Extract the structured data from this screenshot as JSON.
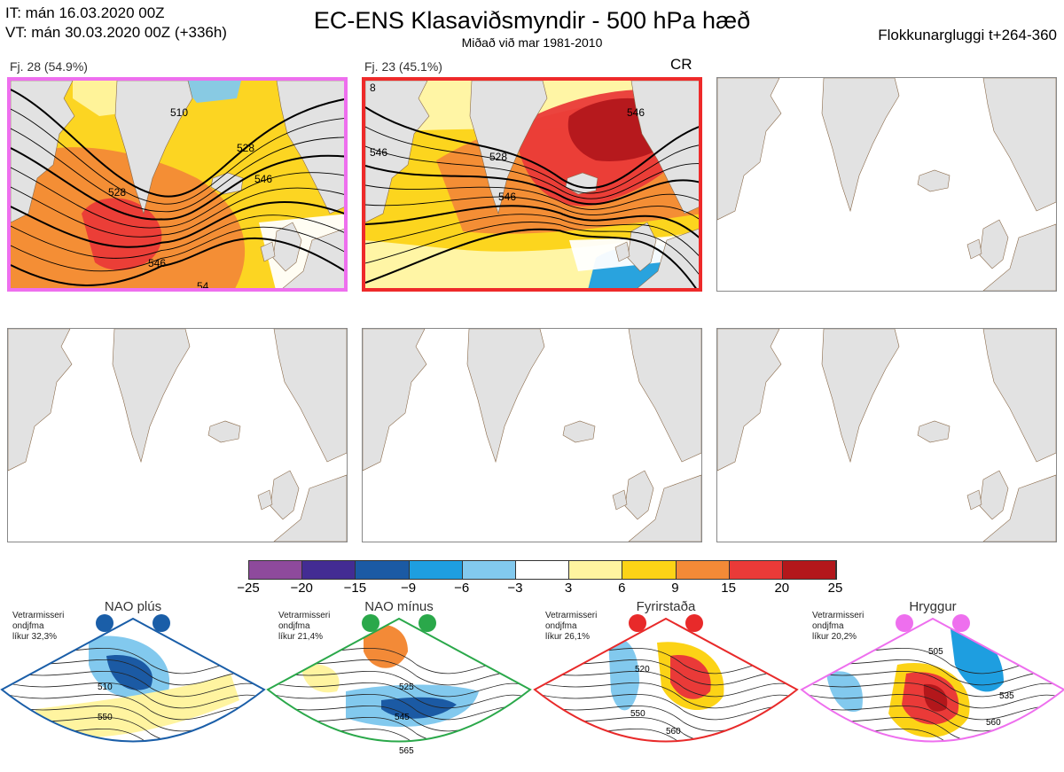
{
  "header": {
    "init_line": "IT: mán 16.03.2020 00Z",
    "valid_line": "VT: mán 30.03.2020 00Z  (+336h)",
    "title": "EC-ENS Klasaviðsmyndir - 500 hPa hæð",
    "subtitle": "Miðað við mar 1981-2010",
    "window": "Flokkunargluggi t+264-360"
  },
  "clusters": [
    {
      "label": "Fj. 28 (54.9%)",
      "border_color": "#ee6fee",
      "contours": [
        "510",
        "528",
        "546",
        "528",
        "546",
        "54"
      ],
      "tag": ""
    },
    {
      "label": "Fj. 23 (45.1%)",
      "border_color": "#ee2a2a",
      "contours": [
        "546",
        "528",
        "546",
        "546",
        "8"
      ],
      "tag": "CR"
    },
    {
      "label": "",
      "border_color": "#888888",
      "contours": [],
      "tag": ""
    },
    {
      "label": "",
      "border_color": "#888888",
      "contours": [],
      "tag": ""
    },
    {
      "label": "",
      "border_color": "#888888",
      "contours": [],
      "tag": ""
    },
    {
      "label": "",
      "border_color": "#888888",
      "contours": [],
      "tag": ""
    }
  ],
  "colorbar": {
    "labels": [
      "−25",
      "−20",
      "−15",
      "−9",
      "−6",
      "−3",
      "3",
      "6",
      "9",
      "15",
      "20",
      "25"
    ],
    "colors": [
      "#8e4a9c",
      "#432c93",
      "#1b5aa4",
      "#1e9ee0",
      "#82c9ee",
      "#ffffff",
      "#fff4a0",
      "#fcd316",
      "#f38a37",
      "#ea3a38",
      "#b3171b"
    ]
  },
  "regimes": [
    {
      "name": "NAO plús",
      "note": [
        "Vetrarmisseri",
        "ondjfma",
        "líkur 32,3%"
      ],
      "color": "#1a5ea8",
      "contours": [
        "510",
        "550"
      ]
    },
    {
      "name": "NAO mínus",
      "note": [
        "Vetrarmisseri",
        "ondjfma",
        "líkur 21,4%"
      ],
      "color": "#2aa84a",
      "contours": [
        "525",
        "545",
        "565"
      ]
    },
    {
      "name": "Fyrirstaða",
      "note": [
        "Vetrarmisseri",
        "ondjfma",
        "líkur 26,1%"
      ],
      "color": "#e82a2a",
      "contours": [
        "520",
        "550",
        "560"
      ]
    },
    {
      "name": "Hryggur",
      "note": [
        "Vetrarmisseri",
        "ondjfma",
        "líkur 20,2%"
      ],
      "color": "#ee6fee",
      "contours": [
        "505",
        "535",
        "560"
      ]
    }
  ]
}
